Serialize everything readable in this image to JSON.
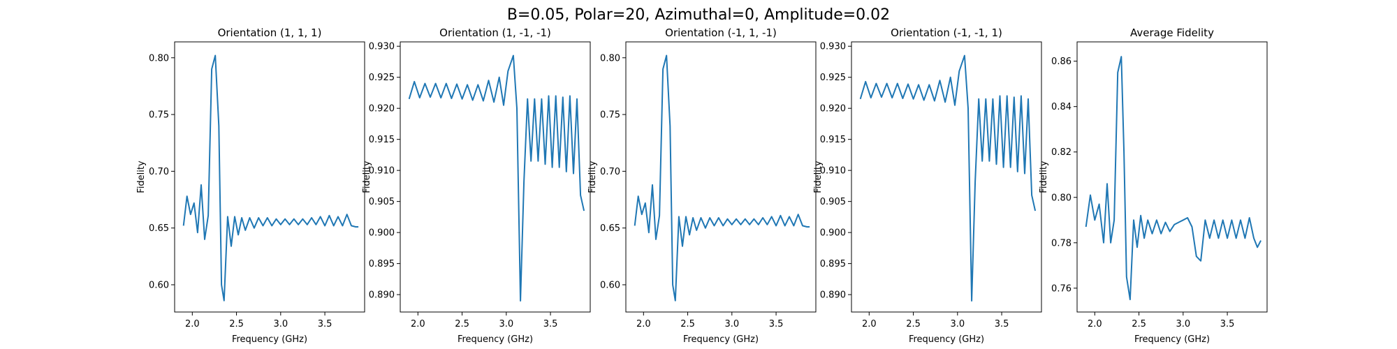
{
  "suptitle": "B=0.05, Polar=20, Azimuthal=0, Amplitude=0.02",
  "colors": {
    "line": "#1f77b4",
    "axes": "#000000",
    "background": "#ffffff"
  },
  "chart_data": [
    {
      "type": "line",
      "title": "Orientation (1, 1, 1)",
      "xlabel": "Frequency (GHz)",
      "ylabel": "Fidelity",
      "xlim": [
        1.8,
        3.95
      ],
      "ylim": [
        0.576,
        0.814
      ],
      "xticks": [
        "2.0",
        "2.5",
        "3.0",
        "3.5"
      ],
      "yticks": [
        "0.60",
        "0.65",
        "0.70",
        "0.75",
        "0.80"
      ],
      "grid": false,
      "series": [
        {
          "x": [
            1.9,
            1.94,
            1.98,
            2.02,
            2.06,
            2.1,
            2.14,
            2.18,
            2.22,
            2.26,
            2.3,
            2.33,
            2.36,
            2.4,
            2.44,
            2.48,
            2.52,
            2.56,
            2.6,
            2.65,
            2.7,
            2.75,
            2.8,
            2.85,
            2.9,
            2.95,
            3.0,
            3.05,
            3.1,
            3.15,
            3.2,
            3.25,
            3.3,
            3.35,
            3.4,
            3.45,
            3.5,
            3.55,
            3.6,
            3.65,
            3.7,
            3.75,
            3.8,
            3.85,
            3.88
          ],
          "y": [
            0.652,
            0.678,
            0.662,
            0.672,
            0.646,
            0.688,
            0.64,
            0.661,
            0.79,
            0.802,
            0.74,
            0.6,
            0.586,
            0.66,
            0.634,
            0.66,
            0.644,
            0.659,
            0.648,
            0.659,
            0.65,
            0.659,
            0.652,
            0.659,
            0.652,
            0.658,
            0.653,
            0.658,
            0.653,
            0.658,
            0.653,
            0.658,
            0.653,
            0.659,
            0.653,
            0.66,
            0.652,
            0.661,
            0.652,
            0.66,
            0.652,
            0.662,
            0.652,
            0.651,
            0.651
          ]
        }
      ]
    },
    {
      "type": "line",
      "title": "Orientation (1, -1, -1)",
      "xlabel": "Frequency (GHz)",
      "ylabel": "Fidelity",
      "xlim": [
        1.8,
        3.95
      ],
      "ylim": [
        0.8872,
        0.9307
      ],
      "xticks": [
        "2.0",
        "2.5",
        "3.0",
        "3.5"
      ],
      "yticks": [
        "0.890",
        "0.895",
        "0.900",
        "0.905",
        "0.910",
        "0.915",
        "0.920",
        "0.925",
        "0.930"
      ],
      "grid": false,
      "series": [
        {
          "x": [
            1.9,
            1.96,
            2.02,
            2.08,
            2.14,
            2.2,
            2.26,
            2.32,
            2.38,
            2.44,
            2.5,
            2.56,
            2.62,
            2.68,
            2.74,
            2.8,
            2.86,
            2.92,
            2.97,
            3.02,
            3.08,
            3.12,
            3.16,
            3.2,
            3.24,
            3.28,
            3.32,
            3.36,
            3.4,
            3.44,
            3.48,
            3.52,
            3.56,
            3.6,
            3.64,
            3.68,
            3.72,
            3.76,
            3.8,
            3.84,
            3.88
          ],
          "y": [
            0.9215,
            0.9243,
            0.9217,
            0.924,
            0.9218,
            0.924,
            0.9217,
            0.924,
            0.9216,
            0.9239,
            0.9215,
            0.9238,
            0.9213,
            0.9238,
            0.9212,
            0.9245,
            0.921,
            0.925,
            0.9205,
            0.926,
            0.9285,
            0.92,
            0.889,
            0.9082,
            0.9215,
            0.9115,
            0.9215,
            0.9115,
            0.9215,
            0.911,
            0.922,
            0.9105,
            0.922,
            0.9105,
            0.9218,
            0.9098,
            0.922,
            0.9095,
            0.9215,
            0.906,
            0.9035
          ]
        }
      ]
    },
    {
      "type": "line",
      "title": "Orientation (-1, 1, -1)",
      "xlabel": "Frequency (GHz)",
      "ylabel": "Fidelity",
      "xlim": [
        1.8,
        3.95
      ],
      "ylim": [
        0.576,
        0.814
      ],
      "xticks": [
        "2.0",
        "2.5",
        "3.0",
        "3.5"
      ],
      "yticks": [
        "0.60",
        "0.65",
        "0.70",
        "0.75",
        "0.80"
      ],
      "grid": false,
      "series": [
        {
          "x": [
            1.9,
            1.94,
            1.98,
            2.02,
            2.06,
            2.1,
            2.14,
            2.18,
            2.22,
            2.26,
            2.3,
            2.33,
            2.36,
            2.4,
            2.44,
            2.48,
            2.52,
            2.56,
            2.6,
            2.65,
            2.7,
            2.75,
            2.8,
            2.85,
            2.9,
            2.95,
            3.0,
            3.05,
            3.1,
            3.15,
            3.2,
            3.25,
            3.3,
            3.35,
            3.4,
            3.45,
            3.5,
            3.55,
            3.6,
            3.65,
            3.7,
            3.75,
            3.8,
            3.85,
            3.88
          ],
          "y": [
            0.652,
            0.678,
            0.662,
            0.672,
            0.646,
            0.688,
            0.64,
            0.661,
            0.79,
            0.802,
            0.74,
            0.6,
            0.586,
            0.66,
            0.634,
            0.66,
            0.644,
            0.659,
            0.648,
            0.659,
            0.65,
            0.659,
            0.652,
            0.659,
            0.652,
            0.658,
            0.653,
            0.658,
            0.653,
            0.658,
            0.653,
            0.658,
            0.653,
            0.659,
            0.653,
            0.66,
            0.652,
            0.661,
            0.652,
            0.66,
            0.652,
            0.662,
            0.652,
            0.651,
            0.651
          ]
        }
      ]
    },
    {
      "type": "line",
      "title": "Orientation (-1, -1, 1)",
      "xlabel": "Frequency (GHz)",
      "ylabel": "Fidelity",
      "xlim": [
        1.8,
        3.95
      ],
      "ylim": [
        0.8872,
        0.9307
      ],
      "xticks": [
        "2.0",
        "2.5",
        "3.0",
        "3.5"
      ],
      "yticks": [
        "0.890",
        "0.895",
        "0.900",
        "0.905",
        "0.910",
        "0.915",
        "0.920",
        "0.925",
        "0.930"
      ],
      "grid": false,
      "series": [
        {
          "x": [
            1.9,
            1.96,
            2.02,
            2.08,
            2.14,
            2.2,
            2.26,
            2.32,
            2.38,
            2.44,
            2.5,
            2.56,
            2.62,
            2.68,
            2.74,
            2.8,
            2.86,
            2.92,
            2.97,
            3.02,
            3.08,
            3.12,
            3.16,
            3.2,
            3.24,
            3.28,
            3.32,
            3.36,
            3.4,
            3.44,
            3.48,
            3.52,
            3.56,
            3.6,
            3.64,
            3.68,
            3.72,
            3.76,
            3.8,
            3.84,
            3.88
          ],
          "y": [
            0.9215,
            0.9243,
            0.9217,
            0.924,
            0.9218,
            0.924,
            0.9217,
            0.924,
            0.9216,
            0.9239,
            0.9215,
            0.9238,
            0.9213,
            0.9238,
            0.9212,
            0.9245,
            0.921,
            0.925,
            0.9205,
            0.926,
            0.9285,
            0.92,
            0.889,
            0.9082,
            0.9215,
            0.9115,
            0.9215,
            0.9115,
            0.9215,
            0.911,
            0.922,
            0.9105,
            0.922,
            0.9105,
            0.9218,
            0.9098,
            0.922,
            0.9095,
            0.9215,
            0.906,
            0.9035
          ]
        }
      ]
    },
    {
      "type": "line",
      "title": "Average Fidelity",
      "xlabel": "Frequency (GHz)",
      "ylabel": "Fidelity",
      "xlim": [
        1.8,
        3.95
      ],
      "ylim": [
        0.7495,
        0.8685
      ],
      "xticks": [
        "2.0",
        "2.5",
        "3.0",
        "3.5"
      ],
      "yticks": [
        "0.76",
        "0.78",
        "0.80",
        "0.82",
        "0.84",
        "0.86"
      ],
      "grid": false,
      "series": [
        {
          "x": [
            1.9,
            1.95,
            2.0,
            2.05,
            2.1,
            2.14,
            2.18,
            2.22,
            2.26,
            2.3,
            2.33,
            2.36,
            2.4,
            2.44,
            2.48,
            2.52,
            2.56,
            2.6,
            2.65,
            2.7,
            2.75,
            2.8,
            2.85,
            2.9,
            2.95,
            3.0,
            3.05,
            3.1,
            3.15,
            3.2,
            3.25,
            3.3,
            3.35,
            3.4,
            3.45,
            3.5,
            3.55,
            3.6,
            3.65,
            3.7,
            3.75,
            3.8,
            3.84,
            3.88
          ],
          "y": [
            0.787,
            0.801,
            0.79,
            0.797,
            0.78,
            0.806,
            0.78,
            0.79,
            0.855,
            0.862,
            0.82,
            0.765,
            0.755,
            0.79,
            0.778,
            0.792,
            0.782,
            0.79,
            0.784,
            0.79,
            0.784,
            0.789,
            0.785,
            0.788,
            0.789,
            0.79,
            0.791,
            0.787,
            0.774,
            0.772,
            0.79,
            0.782,
            0.79,
            0.782,
            0.79,
            0.782,
            0.79,
            0.782,
            0.79,
            0.782,
            0.791,
            0.782,
            0.778,
            0.781
          ]
        }
      ]
    }
  ]
}
